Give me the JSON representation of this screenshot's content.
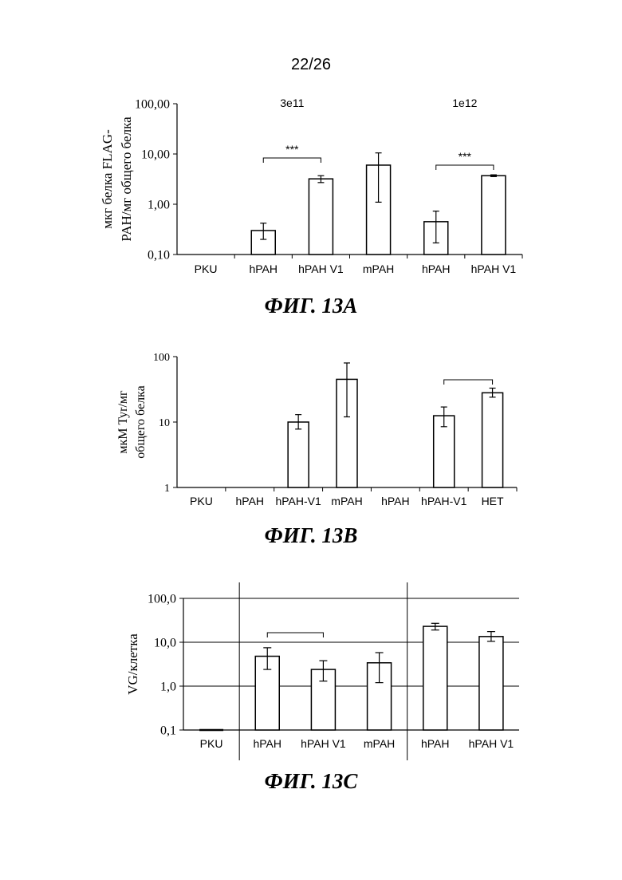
{
  "page_number": "22/26",
  "figures": {
    "a": {
      "caption": "ФИГ. 13A"
    },
    "b": {
      "caption": "ФИГ. 13B"
    },
    "c": {
      "caption": "ФИГ. 13C"
    }
  },
  "colors": {
    "ink": "#000000",
    "bar_fill": "#ffffff"
  },
  "chart_data": [
    {
      "id": "a",
      "type": "bar",
      "yscale": "log",
      "ylim": [
        0.1,
        100
      ],
      "yticks": [
        "0,10",
        "1,00",
        "10,00",
        "100,00"
      ],
      "ylabel_lines": [
        "мкг белка FLAG-",
        "PAH/мг общего белка"
      ],
      "categories": [
        "PKU",
        "hPAH",
        "hPAH V1",
        "mPAH",
        "hPAH",
        "hPAH V1"
      ],
      "values": [
        null,
        0.3,
        3.2,
        6.0,
        0.45,
        3.7
      ],
      "error_low": [
        null,
        0.2,
        2.7,
        1.1,
        0.17,
        3.55
      ],
      "error_high": [
        null,
        0.42,
        3.7,
        10.5,
        0.73,
        3.85
      ],
      "annotations": [
        {
          "text": "3e11",
          "at_category": 1.5
        },
        {
          "text": "1e12",
          "at_category": 4.5
        }
      ],
      "brackets": [
        {
          "from": 1,
          "to": 2,
          "label": "***"
        },
        {
          "from": 4,
          "to": 5,
          "label": "***"
        }
      ],
      "grid": false,
      "group_separators": []
    },
    {
      "id": "b",
      "type": "bar",
      "yscale": "log",
      "ylim": [
        1,
        100
      ],
      "yticks": [
        "1",
        "10",
        "100"
      ],
      "ylabel_lines": [
        "мкМ Tyr/мг",
        "общего белка"
      ],
      "categories": [
        "PKU",
        "hPAH",
        "hPAH-V1",
        "mPAH",
        "hPAH",
        "hPAH-V1",
        "HET"
      ],
      "values": [
        null,
        null,
        10,
        45,
        null,
        12.5,
        28
      ],
      "error_low": [
        null,
        null,
        7.8,
        12,
        null,
        8.5,
        24
      ],
      "error_high": [
        null,
        null,
        13,
        80,
        null,
        17,
        33
      ],
      "annotations": [],
      "brackets": [
        {
          "from": 5,
          "to": 6,
          "label": ""
        }
      ],
      "grid": false,
      "group_separators": []
    },
    {
      "id": "c",
      "type": "bar",
      "yscale": "log",
      "ylim": [
        0.1,
        100
      ],
      "yticks": [
        "0,1",
        "1,0",
        "10,0",
        "100,0"
      ],
      "ylabel_lines": [
        "VG/клетка"
      ],
      "categories": [
        "PKU",
        "hPAH",
        "hPAH V1",
        "mPAH",
        "hPAH",
        "hPAH V1"
      ],
      "values": [
        0.1,
        4.8,
        2.4,
        3.4,
        23,
        13.5
      ],
      "error_low": [
        null,
        2.4,
        1.3,
        1.2,
        19,
        10.5
      ],
      "error_high": [
        null,
        7.5,
        3.8,
        5.8,
        27,
        17.5
      ],
      "annotations": [],
      "brackets": [
        {
          "from": 1,
          "to": 2,
          "label": ""
        }
      ],
      "grid": true,
      "group_separators": [
        0.5,
        3.5
      ]
    }
  ]
}
